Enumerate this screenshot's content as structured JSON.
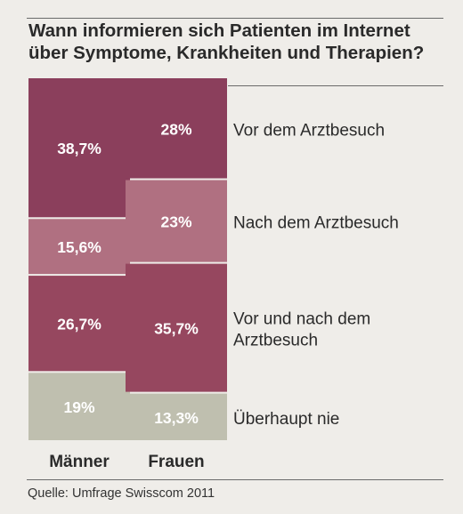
{
  "chart_data": {
    "type": "bar",
    "stacked": true,
    "percent": true,
    "title": "Wann informieren sich Patienten im Internet über Symptome, Krankheiten und Therapien?",
    "categories": [
      "Männer",
      "Frauen"
    ],
    "series": [
      {
        "name": "Vor dem Arztbesuch",
        "values": [
          38.7,
          28
        ],
        "labels": [
          "38,7%",
          "28%"
        ],
        "color": "#8b3f5c"
      },
      {
        "name": "Nach dem Arztbesuch",
        "values": [
          15.6,
          23
        ],
        "labels": [
          "15,6%",
          "23%"
        ],
        "color": "#b07081"
      },
      {
        "name": "Vor und nach dem Arztbesuch",
        "values": [
          26.7,
          35.7
        ],
        "labels": [
          "26,7%",
          "35,7%"
        ],
        "color": "#96475f"
      },
      {
        "name": "Überhaupt nie",
        "values": [
          19,
          13.3
        ],
        "labels": [
          "19%",
          "13,3%"
        ],
        "color": "#bfbfaf"
      }
    ],
    "legend_position": "right, beside each segment",
    "source": "Quelle: Umfrage Swisscom 2011"
  },
  "colors": {
    "background": "#efede9",
    "segment_separator": "#e8e4de",
    "value_text": "#ffffff",
    "rule": "#6a6a6a"
  }
}
